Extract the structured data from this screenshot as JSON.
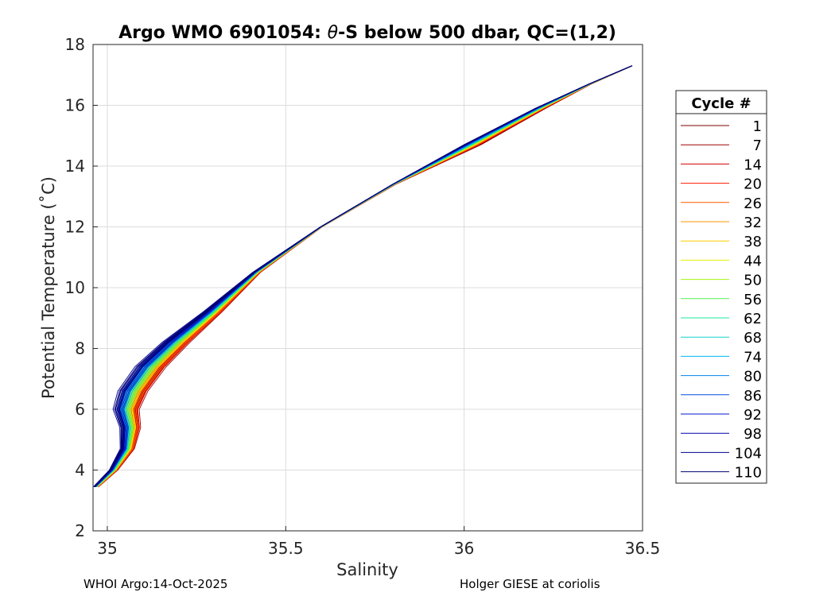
{
  "chart_data": {
    "type": "line",
    "title_prefix": "Argo WMO 6901054: ",
    "title_symbol": "θ",
    "title_suffix": "-S below 500 dbar,  QC=(1,2)",
    "xlabel": "Salinity",
    "ylabel": "Potential Temperature (˚C)",
    "xlim": [
      34.96,
      36.5
    ],
    "ylim": [
      2,
      18
    ],
    "xticks": [
      35,
      35.5,
      36,
      36.5
    ],
    "xtick_labels": [
      "35",
      "35.5",
      "36",
      "36.5"
    ],
    "yticks": [
      2,
      4,
      6,
      8,
      10,
      12,
      14,
      16,
      18
    ],
    "ytick_labels": [
      "2",
      "4",
      "6",
      "8",
      "10",
      "12",
      "14",
      "16",
      "18"
    ],
    "grid": true,
    "legend": {
      "title": "Cycle #",
      "placement": "outside-right",
      "entries": [
        {
          "label": "1",
          "color": "#7f0000"
        },
        {
          "label": "7",
          "color": "#a00000"
        },
        {
          "label": "14",
          "color": "#d40000"
        },
        {
          "label": "20",
          "color": "#ff1a00"
        },
        {
          "label": "26",
          "color": "#ff5a00"
        },
        {
          "label": "32",
          "color": "#ff9500"
        },
        {
          "label": "38",
          "color": "#ffcc00"
        },
        {
          "label": "44",
          "color": "#e8f000"
        },
        {
          "label": "50",
          "color": "#a5f50f"
        },
        {
          "label": "56",
          "color": "#55f24a"
        },
        {
          "label": "62",
          "color": "#1ee89a"
        },
        {
          "label": "68",
          "color": "#14d2c8"
        },
        {
          "label": "74",
          "color": "#00b4f0"
        },
        {
          "label": "80",
          "color": "#0082e6"
        },
        {
          "label": "86",
          "color": "#004ee0"
        },
        {
          "label": "92",
          "color": "#0018c8"
        },
        {
          "label": "98",
          "color": "#0000a8"
        },
        {
          "label": "104",
          "color": "#00008a"
        },
        {
          "label": "110",
          "color": "#000070"
        }
      ]
    },
    "series_template": [
      {
        "s": 34.97,
        "t": 3.45
      },
      {
        "s": 35.02,
        "t": 4.0
      },
      {
        "s": 35.06,
        "t": 4.7
      },
      {
        "s": 35.07,
        "t": 5.4
      },
      {
        "s": 35.06,
        "t": 6.0
      },
      {
        "s": 35.08,
        "t": 6.6
      },
      {
        "s": 35.13,
        "t": 7.4
      },
      {
        "s": 35.2,
        "t": 8.2
      },
      {
        "s": 35.3,
        "t": 9.2
      },
      {
        "s": 35.42,
        "t": 10.5
      },
      {
        "s": 35.6,
        "t": 12.0
      },
      {
        "s": 35.8,
        "t": 13.4
      },
      {
        "s": 36.0,
        "t": 14.7
      },
      {
        "s": 36.2,
        "t": 15.9
      },
      {
        "s": 36.35,
        "t": 16.7
      },
      {
        "s": 36.47,
        "t": 17.3
      }
    ]
  },
  "footer": {
    "left": "WHOI Argo:14-Oct-2025",
    "right": "Holger GIESE at coriolis"
  }
}
